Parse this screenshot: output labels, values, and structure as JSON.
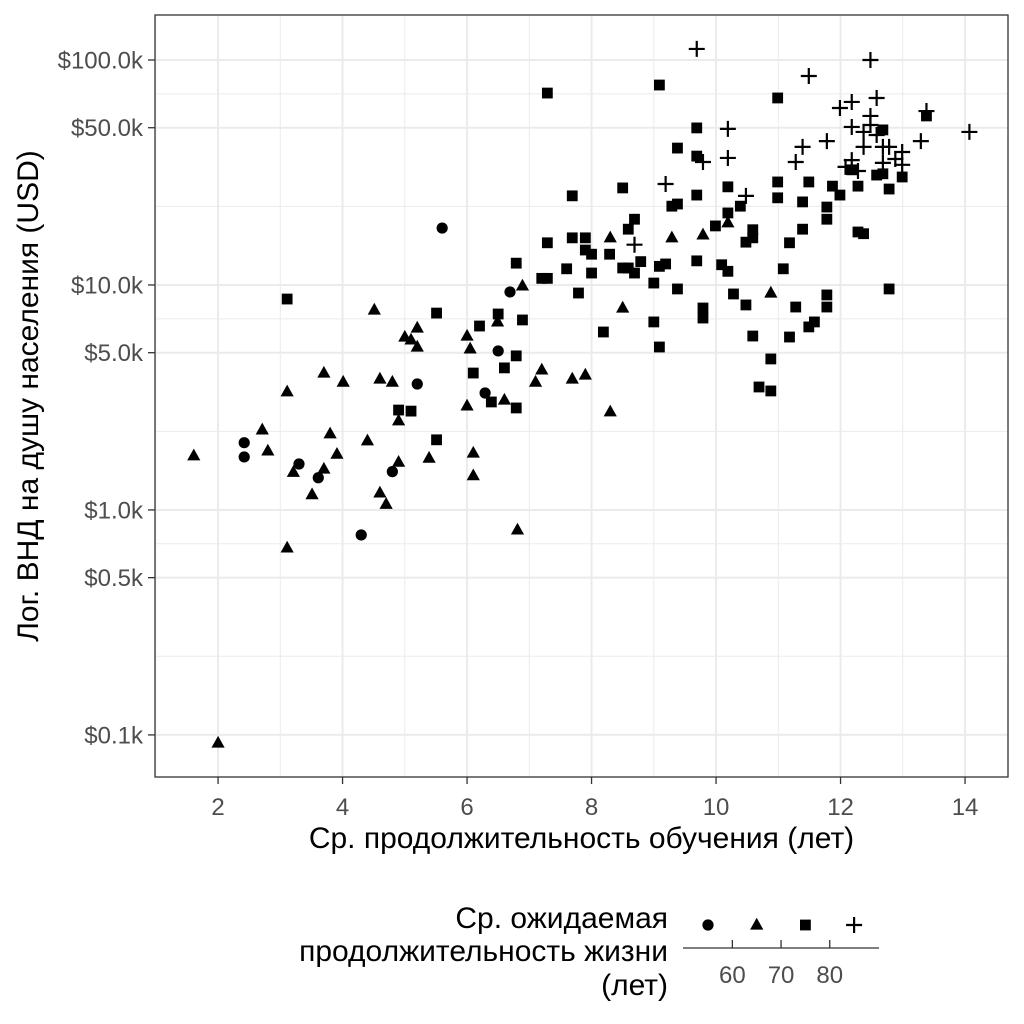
{
  "chart_data": {
    "type": "scatter",
    "xlabel": "Ср. продолжительность обучения (лет)",
    "ylabel": "Лог. ВНД на душу населения (USD)",
    "x_scale": "linear",
    "y_scale": "log10",
    "xlim": [
      0.987,
      14.69
    ],
    "ylim": [
      0.065,
      158.5
    ],
    "grid": true,
    "point_color": "#000000",
    "x_ticks": [
      {
        "value": 2,
        "label": "2"
      },
      {
        "value": 4,
        "label": "4"
      },
      {
        "value": 6,
        "label": "6"
      },
      {
        "value": 8,
        "label": "8"
      },
      {
        "value": 10,
        "label": "10"
      },
      {
        "value": 12,
        "label": "12"
      },
      {
        "value": 14,
        "label": "14"
      }
    ],
    "y_ticks": [
      {
        "value": 0.1,
        "label": "$0.1k"
      },
      {
        "value": 0.5,
        "label": "$0.5k"
      },
      {
        "value": 1,
        "label": "$1.0k"
      },
      {
        "value": 5,
        "label": "$5.0k"
      },
      {
        "value": 10,
        "label": "$10.0k"
      },
      {
        "value": 50,
        "label": "$50.0k"
      },
      {
        "value": 100,
        "label": "$100.0k"
      }
    ],
    "legend": {
      "position": "bottom",
      "title": [
        "Ср. ожидаемая",
        "продолжительность жизни",
        "(лет)"
      ],
      "keys": [
        "circle",
        "triangle",
        "square",
        "plus"
      ],
      "breaks": [
        {
          "value": 60,
          "label": "60"
        },
        {
          "value": 70,
          "label": "70"
        },
        {
          "value": 80,
          "label": "80"
        }
      ]
    },
    "series": [
      {
        "shape": "circle",
        "bin": [
          null,
          60
        ],
        "points": [
          [
            5.6,
            17.9
          ],
          [
            2.42,
            1.99
          ],
          [
            2.42,
            1.72
          ],
          [
            3.3,
            1.6
          ],
          [
            3.61,
            1.39
          ],
          [
            4.8,
            1.48
          ],
          [
            4.3,
            0.774
          ],
          [
            5.2,
            3.63
          ],
          [
            6.29,
            3.31
          ],
          [
            6.5,
            5.09
          ],
          [
            6.69,
            9.31
          ]
        ]
      },
      {
        "shape": "triangle",
        "bin": [
          60,
          70
        ],
        "points": [
          [
            1.61,
            1.74
          ],
          [
            2.0,
            0.092
          ],
          [
            2.71,
            2.27
          ],
          [
            2.8,
            1.83
          ],
          [
            3.11,
            3.35
          ],
          [
            3.11,
            0.678
          ],
          [
            3.21,
            1.47
          ],
          [
            3.51,
            1.17
          ],
          [
            3.7,
            1.52
          ],
          [
            3.7,
            4.06
          ],
          [
            3.8,
            2.18
          ],
          [
            3.91,
            1.77
          ],
          [
            4.01,
            3.7
          ],
          [
            4.4,
            2.03
          ],
          [
            4.51,
            7.74
          ],
          [
            4.6,
            3.82
          ],
          [
            4.6,
            1.19
          ],
          [
            4.7,
            1.06
          ],
          [
            4.8,
            3.7
          ],
          [
            4.9,
            1.63
          ],
          [
            4.9,
            2.49
          ],
          [
            5.0,
            5.87
          ],
          [
            5.1,
            5.7
          ],
          [
            5.2,
            6.44
          ],
          [
            5.2,
            5.3
          ],
          [
            5.39,
            1.7
          ],
          [
            6.0,
            2.9
          ],
          [
            6.1,
            1.79
          ],
          [
            6.1,
            1.42
          ],
          [
            6.0,
            5.93
          ],
          [
            6.05,
            5.2
          ],
          [
            6.49,
            6.85
          ],
          [
            6.6,
            3.08
          ],
          [
            6.81,
            0.815
          ],
          [
            6.89,
            9.9
          ],
          [
            7.1,
            3.7
          ],
          [
            7.2,
            4.19
          ],
          [
            7.69,
            3.82
          ],
          [
            7.9,
            3.98
          ],
          [
            8.3,
            16.2
          ],
          [
            8.3,
            2.73
          ],
          [
            8.5,
            7.9
          ],
          [
            9.29,
            16.2
          ],
          [
            9.79,
            16.7
          ],
          [
            10.19,
            18.9
          ],
          [
            10.88,
            9.21
          ]
        ]
      },
      {
        "shape": "square",
        "bin": [
          70,
          80
        ],
        "points": [
          [
            3.11,
            8.66
          ],
          [
            4.9,
            2.78
          ],
          [
            5.1,
            2.75
          ],
          [
            5.51,
            7.5
          ],
          [
            5.51,
            2.05
          ],
          [
            6.1,
            4.06
          ],
          [
            6.2,
            6.57
          ],
          [
            6.39,
            3.02
          ],
          [
            6.5,
            7.43
          ],
          [
            6.6,
            4.28
          ],
          [
            6.79,
            2.84
          ],
          [
            6.79,
            4.84
          ],
          [
            6.79,
            12.5
          ],
          [
            6.89,
            6.99
          ],
          [
            7.2,
            10.7
          ],
          [
            7.29,
            10.7
          ],
          [
            7.29,
            15.4
          ],
          [
            7.29,
            71.3
          ],
          [
            7.6,
            11.8
          ],
          [
            7.69,
            16.2
          ],
          [
            7.69,
            24.9
          ],
          [
            7.79,
            9.21
          ],
          [
            7.9,
            14.3
          ],
          [
            7.9,
            16.2
          ],
          [
            8.0,
            11.3
          ],
          [
            8.0,
            13.7
          ],
          [
            8.19,
            6.18
          ],
          [
            8.29,
            13.7
          ],
          [
            8.5,
            11.9
          ],
          [
            8.5,
            27.0
          ],
          [
            8.59,
            11.9
          ],
          [
            8.59,
            17.7
          ],
          [
            8.69,
            11.3
          ],
          [
            8.69,
            19.6
          ],
          [
            8.79,
            12.7
          ],
          [
            9.0,
            6.85
          ],
          [
            9.0,
            10.2
          ],
          [
            9.09,
            5.3
          ],
          [
            9.09,
            12.1
          ],
          [
            9.09,
            77.4
          ],
          [
            9.19,
            12.4
          ],
          [
            9.29,
            22.4
          ],
          [
            9.38,
            9.6
          ],
          [
            9.38,
            22.9
          ],
          [
            9.38,
            40.6
          ],
          [
            9.69,
            12.8
          ],
          [
            9.69,
            25.1
          ],
          [
            9.69,
            37.4
          ],
          [
            9.69,
            49.9
          ],
          [
            9.79,
            7.13
          ],
          [
            9.79,
            7.9
          ],
          [
            9.99,
            18.3
          ],
          [
            10.09,
            12.3
          ],
          [
            10.19,
            11.5
          ],
          [
            10.19,
            20.9
          ],
          [
            10.19,
            27.3
          ],
          [
            10.28,
            9.12
          ],
          [
            10.39,
            22.4
          ],
          [
            10.48,
            8.15
          ],
          [
            10.48,
            15.5
          ],
          [
            10.59,
            5.93
          ],
          [
            10.59,
            16.2
          ],
          [
            10.59,
            17.6
          ],
          [
            10.69,
            3.52
          ],
          [
            10.88,
            3.38
          ],
          [
            10.88,
            4.69
          ],
          [
            10.99,
            24.4
          ],
          [
            10.99,
            28.7
          ],
          [
            10.99,
            67.8
          ],
          [
            11.08,
            11.8
          ],
          [
            11.18,
            5.87
          ],
          [
            11.18,
            15.4
          ],
          [
            11.28,
            7.98
          ],
          [
            11.39,
            17.7
          ],
          [
            11.39,
            23.4
          ],
          [
            11.49,
            6.51
          ],
          [
            11.49,
            28.7
          ],
          [
            11.58,
            6.85
          ],
          [
            11.78,
            7.98
          ],
          [
            11.78,
            9.03
          ],
          [
            11.78,
            19.6
          ],
          [
            11.78,
            22.2
          ],
          [
            11.87,
            27.5
          ],
          [
            11.99,
            25.1
          ],
          [
            12.18,
            32.5
          ],
          [
            12.28,
            17.2
          ],
          [
            12.28,
            27.5
          ],
          [
            12.37,
            16.9
          ],
          [
            12.58,
            30.8
          ],
          [
            12.68,
            31.2
          ],
          [
            12.68,
            48.9
          ],
          [
            12.78,
            9.6
          ],
          [
            12.78,
            26.7
          ],
          [
            12.99,
            30.2
          ],
          [
            13.38,
            56.4
          ]
        ]
      },
      {
        "shape": "plus",
        "bin": [
          80,
          null
        ],
        "points": [
          [
            8.69,
            15.1
          ],
          [
            9.19,
            28.1
          ],
          [
            9.69,
            112
          ],
          [
            9.79,
            35.2
          ],
          [
            10.19,
            36.7
          ],
          [
            10.19,
            49.4
          ],
          [
            10.48,
            24.9
          ],
          [
            11.28,
            35.2
          ],
          [
            11.39,
            41.1
          ],
          [
            11.49,
            84.9
          ],
          [
            11.78,
            43.6
          ],
          [
            11.99,
            61.2
          ],
          [
            12.08,
            33.5
          ],
          [
            12.18,
            35.9
          ],
          [
            12.18,
            50.4
          ],
          [
            12.18,
            65.1
          ],
          [
            12.28,
            32.1
          ],
          [
            12.37,
            41.1
          ],
          [
            12.37,
            47.9
          ],
          [
            12.48,
            51.4
          ],
          [
            12.48,
            56.4
          ],
          [
            12.48,
            100
          ],
          [
            12.58,
            46.4
          ],
          [
            12.58,
            67.8
          ],
          [
            12.68,
            34.9
          ],
          [
            12.68,
            41.1
          ],
          [
            12.78,
            41.1
          ],
          [
            12.88,
            36.3
          ],
          [
            12.99,
            34.2
          ],
          [
            12.99,
            39.0
          ],
          [
            13.29,
            43.6
          ],
          [
            13.38,
            59.3
          ],
          [
            14.07,
            47.9
          ]
        ]
      }
    ]
  }
}
